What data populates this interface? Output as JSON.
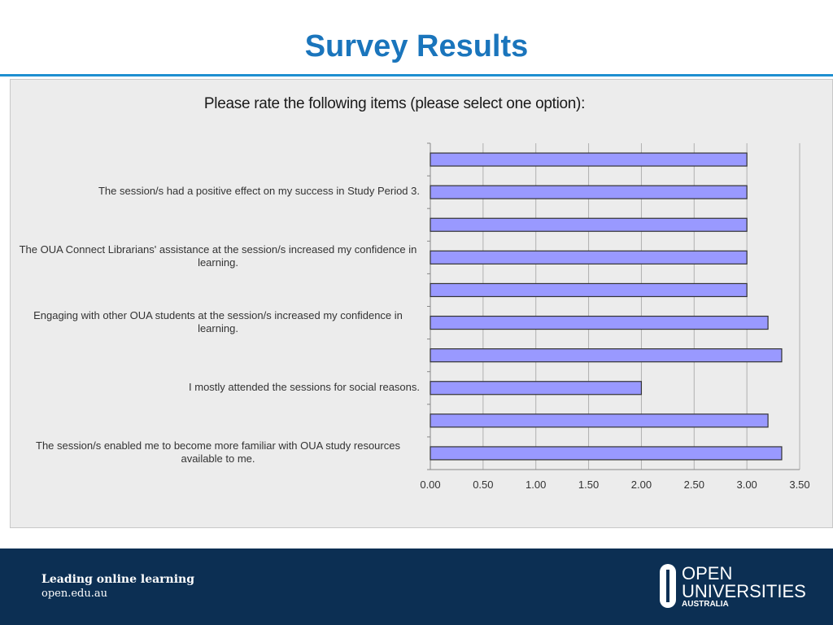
{
  "slide": {
    "title": "Survey Results"
  },
  "footer": {
    "tagline": "Leading online learning",
    "url": "open.edu.au",
    "logo_line1": "OPEN",
    "logo_line2": "UNIVERSITIES",
    "logo_line3": "AUSTRALIA"
  },
  "colors": {
    "title": "#1a75bc",
    "rule": "#1e8fd0",
    "bar_fill": "#9999ff",
    "bar_stroke": "#333333",
    "footer_bg": "#0c2f53"
  },
  "chart_data": {
    "type": "bar",
    "orientation": "horizontal",
    "title": "Please rate the following items (please select one option):",
    "categories": [
      "",
      "The session/s had a positive effect on my success in Study Period 3.",
      "",
      "The OUA Connect Librarians' assistance at the session/s increased my confidence in learning.",
      "",
      "Engaging with other OUA students at the session/s increased my confidence in learning.",
      "",
      "I mostly attended the sessions for social reasons.",
      "",
      "The session/s enabled me to become more familiar with OUA study resources available to me."
    ],
    "values": [
      3.0,
      3.0,
      3.0,
      3.0,
      3.0,
      3.2,
      3.33,
      2.0,
      3.2,
      3.33
    ],
    "xlim": [
      0,
      3.5
    ],
    "xticks": [
      "0.00",
      "0.50",
      "1.00",
      "1.50",
      "2.00",
      "2.50",
      "3.00",
      "3.50"
    ],
    "grid": true,
    "legend": "none"
  }
}
